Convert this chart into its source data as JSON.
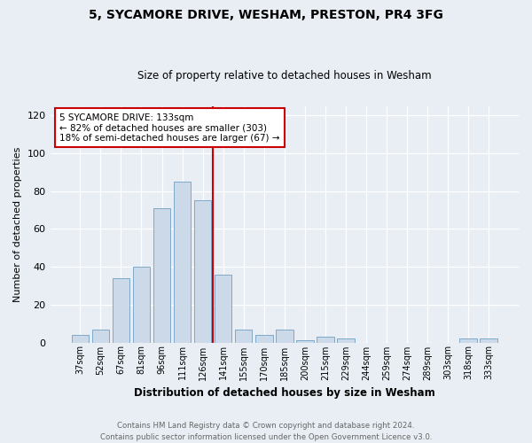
{
  "title": "5, SYCAMORE DRIVE, WESHAM, PRESTON, PR4 3FG",
  "subtitle": "Size of property relative to detached houses in Wesham",
  "xlabel": "Distribution of detached houses by size in Wesham",
  "ylabel": "Number of detached properties",
  "categories": [
    "37sqm",
    "52sqm",
    "67sqm",
    "81sqm",
    "96sqm",
    "111sqm",
    "126sqm",
    "141sqm",
    "155sqm",
    "170sqm",
    "185sqm",
    "200sqm",
    "215sqm",
    "229sqm",
    "244sqm",
    "259sqm",
    "274sqm",
    "289sqm",
    "303sqm",
    "318sqm",
    "333sqm"
  ],
  "values": [
    4,
    7,
    34,
    40,
    71,
    85,
    75,
    36,
    7,
    4,
    7,
    1,
    3,
    2,
    0,
    0,
    0,
    0,
    0,
    2,
    2
  ],
  "bar_color": "#ccd9e8",
  "bar_edge_color": "#7fa8c8",
  "ref_line_color": "#cc0000",
  "annotation_text": "5 SYCAMORE DRIVE: 133sqm\n← 82% of detached houses are smaller (303)\n18% of semi-detached houses are larger (67) →",
  "annotation_box_color": "#ffffff",
  "annotation_box_edge": "#cc0000",
  "footer": "Contains HM Land Registry data © Crown copyright and database right 2024.\nContains public sector information licensed under the Open Government Licence v3.0.",
  "ylim": [
    0,
    125
  ],
  "yticks": [
    0,
    20,
    40,
    60,
    80,
    100,
    120
  ],
  "background_color": "#e8eef4",
  "plot_background": "#e8eef4",
  "title_fontsize": 10,
  "subtitle_fontsize": 8.5,
  "ylabel_fontsize": 8,
  "xlabel_fontsize": 8.5
}
